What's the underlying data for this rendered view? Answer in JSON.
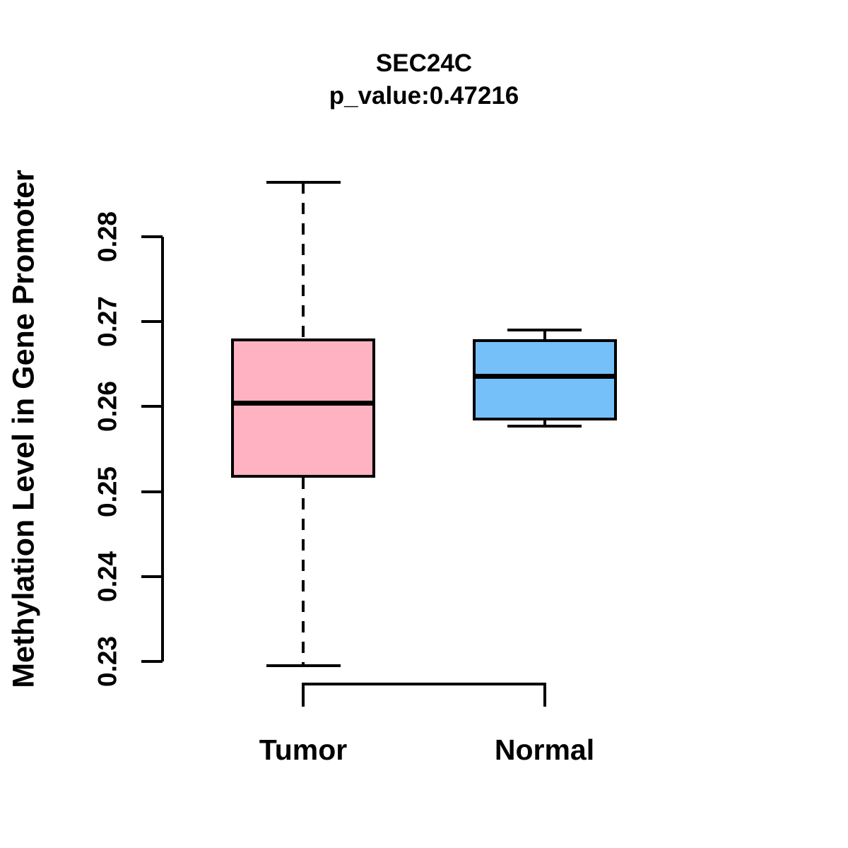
{
  "chart_data": {
    "type": "boxplot",
    "title": "SEC24C",
    "subtitle": "p_value:0.47216",
    "p_value": 0.47216,
    "ylabel": "Methylation Level in Gene Promoter",
    "xlabel": "",
    "categories": [
      "Tumor",
      "Normal"
    ],
    "yticks": [
      0.23,
      0.24,
      0.25,
      0.26,
      0.27,
      0.28
    ],
    "ylim": [
      0.2285,
      0.287
    ],
    "grid": false,
    "legend": "none",
    "stroke_color": "#000000",
    "background_color": "#ffffff",
    "series": [
      {
        "name": "Tumor",
        "min": 0.2295,
        "q1": 0.2516,
        "median": 0.2604,
        "q3": 0.268,
        "max": 0.2864,
        "fill_color": "#FFB2C1"
      },
      {
        "name": "Normal",
        "min": 0.2577,
        "q1": 0.2584,
        "median": 0.2636,
        "q3": 0.2679,
        "max": 0.269,
        "fill_color": "#76C0FA"
      }
    ]
  }
}
